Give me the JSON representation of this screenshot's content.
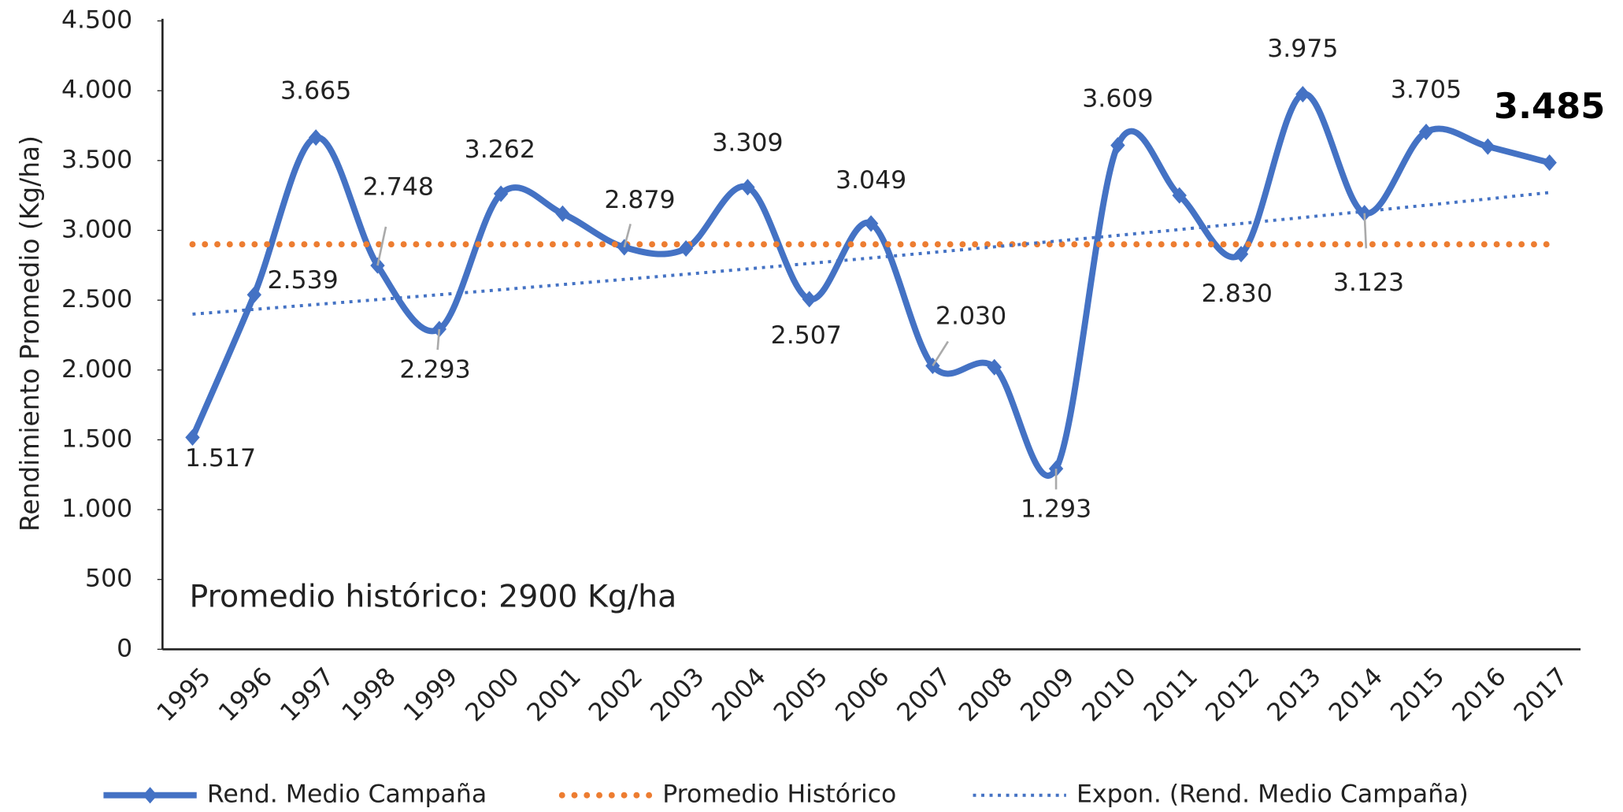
{
  "chart_data": {
    "type": "line",
    "ylabel": "Rendimiento Promedio (Kg/ha)",
    "annotation": "Promedio histórico: 2900 Kg/ha",
    "categories": [
      "1995",
      "1996",
      "1997",
      "1998",
      "1999",
      "2000",
      "2001",
      "2002",
      "2003",
      "2004",
      "2005",
      "2006",
      "2007",
      "2008",
      "2009",
      "2010",
      "2011",
      "2012",
      "2013",
      "2014",
      "2015",
      "2016",
      "2017"
    ],
    "series": [
      {
        "name": "Rend. Medio Campaña",
        "color": "#4472c4",
        "style": "solid-smooth-marker",
        "values": [
          1517,
          2539,
          3665,
          2748,
          2293,
          3262,
          3120,
          2879,
          2870,
          3309,
          2507,
          3049,
          2030,
          2020,
          1293,
          3609,
          3250,
          2830,
          3975,
          3123,
          3705,
          3600,
          3485
        ],
        "value_labels": [
          "1.517",
          "2.539",
          "3.665",
          "2.748",
          "2.293",
          "3.262",
          null,
          "2.879",
          null,
          "3.309",
          "2.507",
          "3.049",
          "2.030",
          null,
          "1.293",
          "3.609",
          null,
          "2.830",
          "3.975",
          "3.123",
          "3.705",
          null,
          "3.485"
        ]
      },
      {
        "name": "Promedio Histórico",
        "color": "#ed7d31",
        "style": "dotted-round",
        "values": [
          2900,
          2900,
          2900,
          2900,
          2900,
          2900,
          2900,
          2900,
          2900,
          2900,
          2900,
          2900,
          2900,
          2900,
          2900,
          2900,
          2900,
          2900,
          2900,
          2900,
          2900,
          2900,
          2900
        ]
      },
      {
        "name": "Expon. (Rend. Medio Campaña)",
        "color": "#4472c4",
        "style": "dotted-fine",
        "values": [
          2400,
          2434,
          2469,
          2504,
          2539,
          2575,
          2612,
          2649,
          2686,
          2724,
          2763,
          2802,
          2842,
          2882,
          2923,
          2964,
          3006,
          3049,
          3092,
          3136,
          3180,
          3225,
          3271
        ]
      }
    ],
    "ylim": [
      0,
      4500
    ],
    "yticks": [
      0,
      500,
      {
        "value": 1000,
        "label": "1.000"
      },
      {
        "value": 1500,
        "label": "1.500"
      },
      {
        "value": 2000,
        "label": "2.000"
      },
      {
        "value": 2500,
        "label": "2.500"
      },
      {
        "value": 3000,
        "label": "3.000"
      },
      {
        "value": 3500,
        "label": "3.500"
      },
      {
        "value": 4000,
        "label": "4.000"
      },
      {
        "value": 4500,
        "label": "4.500"
      }
    ],
    "grid": false,
    "legend": "bottom"
  }
}
